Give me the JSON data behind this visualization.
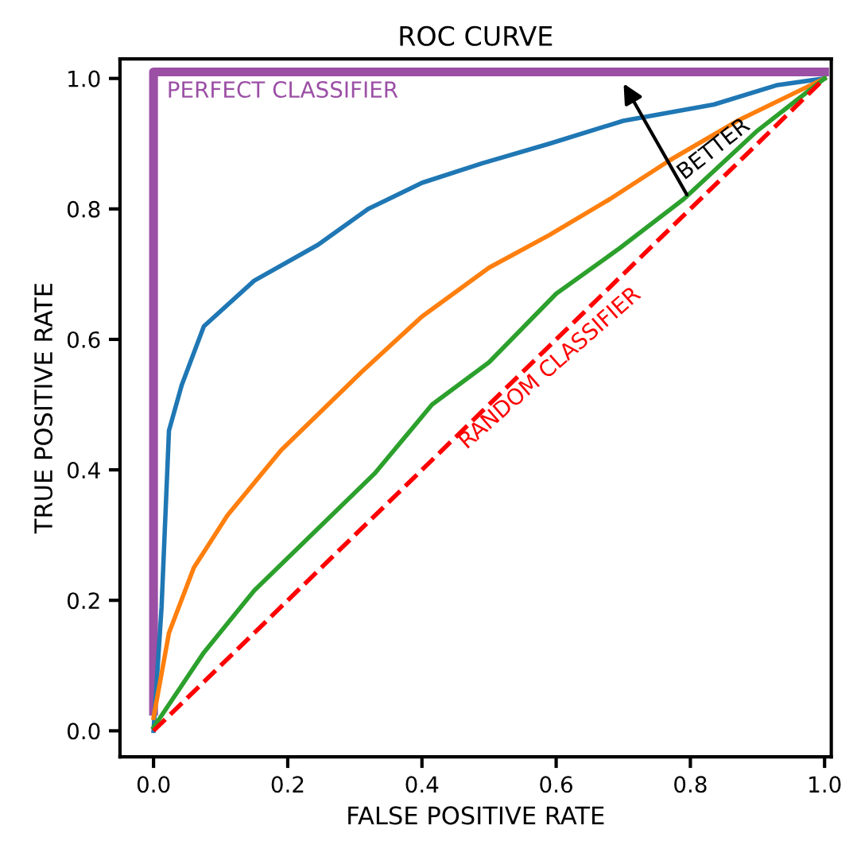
{
  "chart_data": {
    "type": "line",
    "title": "ROC CURVE",
    "xlabel": "FALSE POSITIVE RATE",
    "ylabel": "TRUE POSITIVE RATE",
    "xlim": [
      -0.05,
      1.01
    ],
    "ylim": [
      -0.04,
      1.03
    ],
    "xticks": [
      {
        "value": 0,
        "label": "0.0"
      },
      0.2,
      0.4,
      0.6,
      0.8,
      {
        "value": 1,
        "label": "1.0"
      }
    ],
    "yticks": [
      {
        "value": 0,
        "label": "0.0"
      },
      0.2,
      0.4,
      0.6,
      0.8,
      {
        "value": 1,
        "label": "1.0"
      }
    ],
    "legend": false,
    "marker": "none",
    "series": [
      {
        "color": "#1f77b4",
        "x": [
          0,
          0.012,
          0.023,
          0.042,
          0.075,
          0.15,
          0.245,
          0.32,
          0.4,
          0.49,
          0.59,
          0.7,
          0.835,
          0.93,
          1.0
        ],
        "values": [
          0,
          0.19,
          0.46,
          0.53,
          0.62,
          0.69,
          0.745,
          0.8,
          0.84,
          0.87,
          0.9,
          0.935,
          0.96,
          0.99,
          1.0
        ]
      },
      {
        "color": "#ff7f0e",
        "x": [
          0,
          0.023,
          0.06,
          0.11,
          0.19,
          0.31,
          0.4,
          0.5,
          0.59,
          0.68,
          0.77,
          0.87,
          1.0
        ],
        "values": [
          0.02,
          0.15,
          0.25,
          0.33,
          0.43,
          0.55,
          0.635,
          0.71,
          0.76,
          0.815,
          0.875,
          0.935,
          1.0
        ]
      },
      {
        "color": "#2ca02c",
        "x": [
          0,
          0.075,
          0.15,
          0.245,
          0.33,
          0.415,
          0.5,
          0.6,
          0.695,
          0.79,
          0.9,
          1.0
        ],
        "values": [
          0.005,
          0.12,
          0.215,
          0.31,
          0.395,
          0.5,
          0.565,
          0.67,
          0.74,
          0.815,
          0.92,
          1.0
        ]
      },
      {
        "name": "RANDOM CLASSIFIER",
        "color": "#ff0000",
        "line_style": "dashed",
        "x": [
          0,
          1
        ],
        "values": [
          0,
          1
        ]
      },
      {
        "name": "PERFECT CLASSIFIER",
        "color": "#9b4fa5",
        "x": [
          0,
          0,
          1
        ],
        "values": [
          0.03,
          1.01,
          1.01
        ]
      }
    ],
    "annotations": [
      "BETTER"
    ]
  }
}
